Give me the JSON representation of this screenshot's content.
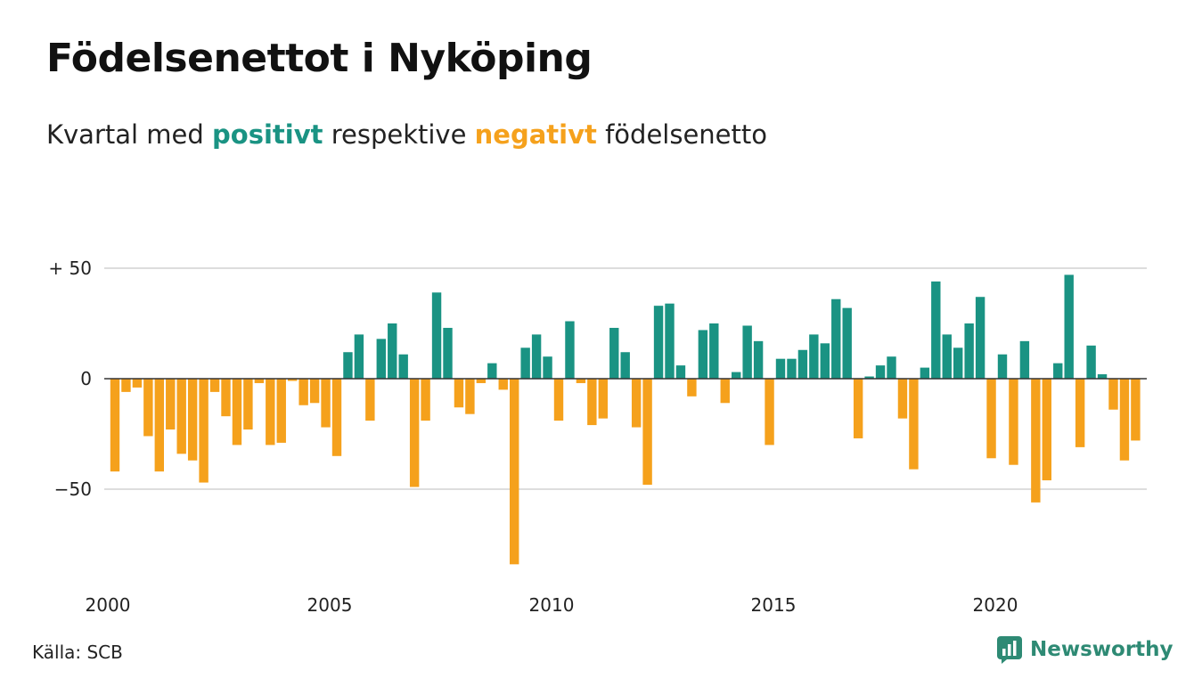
{
  "title": "Födelsenettot i Nyköping",
  "subtitle": {
    "prefix": "Kvartal med",
    "positive_word": "positivt",
    "middle": "respektive",
    "negative_word": "negativt",
    "suffix": "födelsenetto"
  },
  "colors": {
    "positive": "#1a9383",
    "negative": "#f5a11c",
    "grid": "#dddddd",
    "axis": "#333333",
    "brand": "#2e8a74"
  },
  "chart_data": {
    "type": "bar",
    "x_unit": "quarter",
    "start": "2000 Q1",
    "values": [
      -42,
      -6,
      -4,
      -26,
      -42,
      -23,
      -34,
      -37,
      -47,
      -6,
      -17,
      -30,
      -23,
      -2,
      -30,
      -29,
      -1,
      -12,
      -11,
      -22,
      -35,
      12,
      20,
      -19,
      18,
      25,
      11,
      -49,
      -19,
      39,
      23,
      -13,
      -16,
      -2,
      7,
      -5,
      -84,
      14,
      20,
      10,
      -19,
      26,
      -2,
      -21,
      -18,
      23,
      12,
      -22,
      -48,
      33,
      34,
      6,
      -8,
      22,
      25,
      -11,
      3,
      24,
      17,
      -30,
      9,
      9,
      13,
      20,
      16,
      36,
      32,
      -27,
      1,
      6,
      10,
      -18,
      -41,
      5,
      44,
      20,
      14,
      25,
      37,
      -36,
      11,
      -39,
      17,
      -56,
      -46,
      7,
      47,
      -31,
      15,
      2,
      -14,
      -37,
      -28
    ],
    "x_ticks": [
      "2000",
      "2005",
      "2010",
      "2015",
      "2020"
    ],
    "y_ticks": [
      {
        "value": 50,
        "label": "+ 50"
      },
      {
        "value": 0,
        "label": "0"
      },
      {
        "value": -50,
        "label": "−50"
      }
    ],
    "ylim": [
      -88,
      50
    ],
    "grid": true
  },
  "source": "Källa: SCB",
  "brand": "Newsworthy"
}
